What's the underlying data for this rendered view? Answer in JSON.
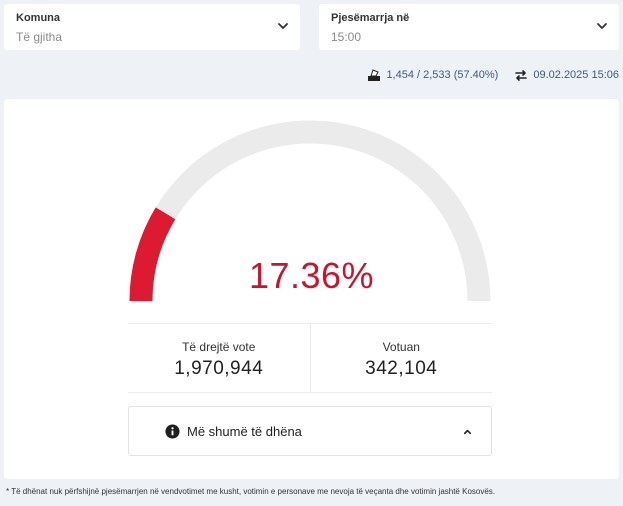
{
  "filters": {
    "komuna": {
      "label": "Komuna",
      "value": "Të gjitha"
    },
    "pjesemarrja": {
      "label": "Pjesëmarrja në",
      "value": "15:00"
    }
  },
  "stats": {
    "stations_text": "1,454 / 2,533 (57.40%)",
    "updated_text": "09.02.2025 15:06",
    "stations_icon": "ballot-box-icon",
    "updated_icon": "sync-arrows-icon"
  },
  "gauge": {
    "percent_text": "17.36%",
    "fraction": 0.1736,
    "fill_color": "#dc1b33",
    "track_color": "#ebebeb"
  },
  "metrics": {
    "eligible": {
      "label": "Të drejtë vote",
      "value": "1,970,944"
    },
    "voted": {
      "label": "Votuan",
      "value": "342,104"
    }
  },
  "more": {
    "label": "Më shumë të dhëna",
    "icon": "info-circle-icon"
  },
  "footnote": "* Të dhënat nuk përfshijnë pjesëmarrjen në vendvotimet me kusht, votimin e personave me nevoja të veçanta dhe votimin jashtë Kosovës."
}
